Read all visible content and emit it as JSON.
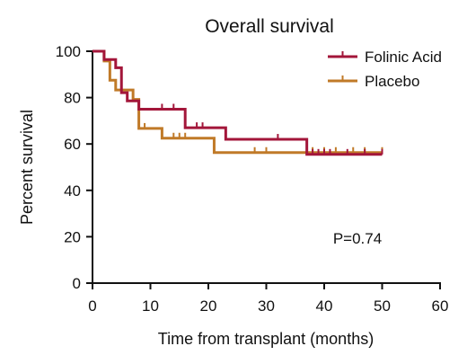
{
  "chart_data": {
    "type": "line",
    "subtype": "kaplan-meier step",
    "title": "Overall survival",
    "xlabel": "Time from transplant (months)",
    "ylabel": "Percent survival",
    "xlim": [
      0,
      60
    ],
    "ylim": [
      0,
      100
    ],
    "xticks": [
      0,
      10,
      20,
      30,
      40,
      50,
      60
    ],
    "yticks": [
      0,
      20,
      40,
      60,
      80,
      100
    ],
    "grid": false,
    "legend_position": "top-right",
    "annotation": "P=0.74",
    "series": [
      {
        "name": "Folinic Acid",
        "color": "#a3163a",
        "steps": [
          [
            0,
            100
          ],
          [
            2,
            96.4
          ],
          [
            4,
            92.9
          ],
          [
            5,
            82.1
          ],
          [
            6,
            78.6
          ],
          [
            8,
            75
          ],
          [
            16,
            67
          ],
          [
            23,
            62
          ],
          [
            37,
            55.5
          ],
          [
            50,
            55.5
          ]
        ],
        "censored": [
          [
            12,
            75
          ],
          [
            14,
            75
          ],
          [
            18,
            67
          ],
          [
            19,
            67
          ],
          [
            32,
            62
          ],
          [
            38,
            55.5
          ],
          [
            39,
            55.5
          ],
          [
            40,
            55.5
          ],
          [
            41,
            55.5
          ],
          [
            44,
            55.5
          ],
          [
            47,
            55.5
          ],
          [
            50,
            55.5
          ]
        ]
      },
      {
        "name": "Placebo",
        "color": "#c07a28",
        "steps": [
          [
            0,
            100
          ],
          [
            1,
            100
          ],
          [
            2,
            95.8
          ],
          [
            3,
            87.5
          ],
          [
            4,
            83.3
          ],
          [
            7,
            79.2
          ],
          [
            8,
            66.7
          ],
          [
            12,
            62.5
          ],
          [
            21,
            56.3
          ],
          [
            50,
            56.3
          ]
        ],
        "censored": [
          [
            9,
            66.7
          ],
          [
            14,
            62.5
          ],
          [
            15,
            62.5
          ],
          [
            16,
            62.5
          ],
          [
            28,
            56.3
          ],
          [
            30,
            56.3
          ],
          [
            38,
            56.3
          ],
          [
            40,
            56.3
          ],
          [
            42,
            56.3
          ],
          [
            45,
            56.3
          ],
          [
            47,
            56.3
          ],
          [
            50,
            56.3
          ]
        ]
      }
    ]
  }
}
